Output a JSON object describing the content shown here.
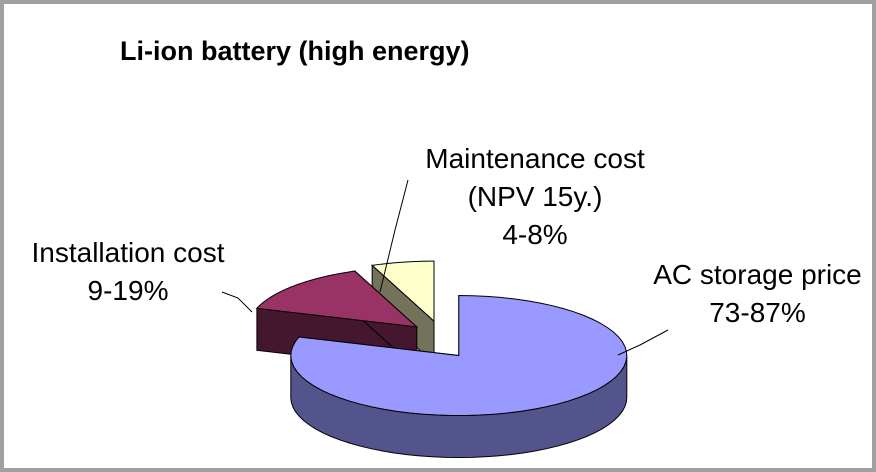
{
  "chart_data": {
    "type": "pie3d",
    "title": "Li-ion battery (high energy)",
    "categories": [
      "AC storage price",
      "Installation cost",
      "Maintenance cost (NPV 15y.)"
    ],
    "values": [
      80,
      14,
      6
    ],
    "value_labels": [
      "73-87%",
      "9-19%",
      "4-8%"
    ],
    "colors": [
      "#9999ff",
      "#993366",
      "#ffffcc"
    ]
  }
}
